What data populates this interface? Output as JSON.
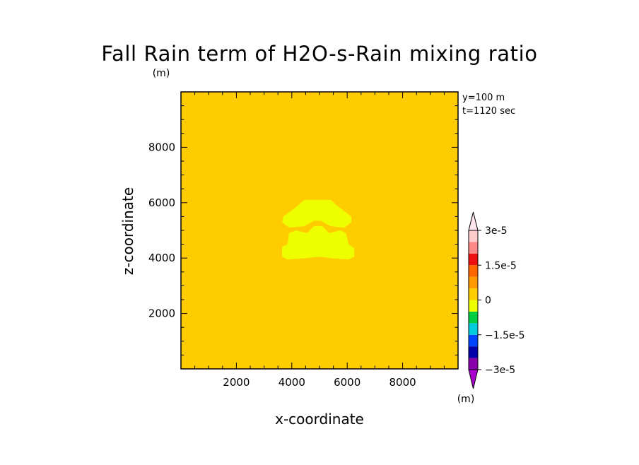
{
  "chart_data": {
    "type": "heatmap",
    "title": "Fall Rain term of H2O-s-Rain mixing ratio",
    "units": "(m)",
    "colorbar_units": "(m)",
    "info_lines": [
      "y=100 m",
      "t=1120 sec"
    ],
    "xlabel": "x-coordinate",
    "ylabel": "z-coordinate",
    "xlim": [
      0,
      10000
    ],
    "ylim": [
      0,
      10000
    ],
    "x_ticks": [
      2000,
      4000,
      6000,
      8000
    ],
    "y_ticks": [
      2000,
      4000,
      6000,
      8000
    ],
    "x_tick_labels": [
      "2000",
      "4000",
      "6000",
      "8000"
    ],
    "y_tick_labels": [
      "2000",
      "4000",
      "6000",
      "8000"
    ],
    "background_level_color": "#ffcc00",
    "anomaly_color": "#eeff00",
    "anomaly_regions": [
      {
        "description": "upper blob",
        "polygon": [
          [
            4450,
            6100
          ],
          [
            5400,
            6100
          ],
          [
            5750,
            5800
          ],
          [
            6150,
            5500
          ],
          [
            6150,
            5300
          ],
          [
            5900,
            5100
          ],
          [
            5400,
            5150
          ],
          [
            5050,
            5350
          ],
          [
            4800,
            5350
          ],
          [
            4450,
            5150
          ],
          [
            3900,
            5100
          ],
          [
            3650,
            5300
          ],
          [
            3700,
            5500
          ],
          [
            4100,
            5800
          ]
        ]
      },
      {
        "description": "lower blob",
        "polygon": [
          [
            3650,
            4050
          ],
          [
            3650,
            4400
          ],
          [
            3850,
            4500
          ],
          [
            3900,
            4900
          ],
          [
            4150,
            5000
          ],
          [
            4550,
            4900
          ],
          [
            4800,
            5150
          ],
          [
            5100,
            5150
          ],
          [
            5350,
            4900
          ],
          [
            5750,
            5000
          ],
          [
            5950,
            4900
          ],
          [
            6050,
            4500
          ],
          [
            6250,
            4350
          ],
          [
            6250,
            4050
          ],
          [
            6050,
            3950
          ],
          [
            5400,
            4000
          ],
          [
            5000,
            4050
          ],
          [
            4500,
            4000
          ],
          [
            3850,
            3950
          ]
        ]
      }
    ],
    "colorbar": {
      "levels": [
        -3e-05,
        -2.5e-05,
        -2e-05,
        -1.5e-05,
        -1e-05,
        -5e-06,
        0,
        5e-06,
        1e-05,
        1.5e-05,
        2e-05,
        2.5e-05,
        3e-05
      ],
      "colors": [
        "#8800aa",
        "#0000aa",
        "#0044ff",
        "#00ccdd",
        "#00cc44",
        "#eeff00",
        "#ffcc00",
        "#ff9900",
        "#ff6600",
        "#ee1111",
        "#ff8888",
        "#ffcccc"
      ],
      "under_color": "#aa00cc",
      "over_color": "#ffe6ee",
      "labels": [
        {
          "value": 3e-05,
          "text": "3e-5"
        },
        {
          "value": 1.5e-05,
          "text": "1.5e-5"
        },
        {
          "value": 0,
          "text": "0"
        },
        {
          "value": -1.5e-05,
          "text": "−1.5e-5"
        },
        {
          "value": -3e-05,
          "text": "−3e-5"
        }
      ]
    }
  }
}
